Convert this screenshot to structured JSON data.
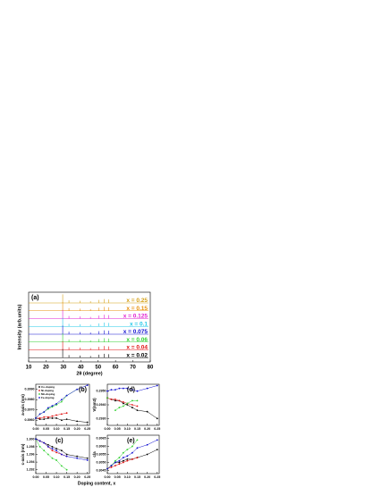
{
  "chart_data": [
    {
      "type": "waterfall",
      "label": "(a)",
      "xlabel": "2θ (degree)",
      "ylabel": "Intensity (arb.units)",
      "xlim": [
        10,
        80
      ],
      "xticks": [
        10,
        20,
        30,
        40,
        50,
        60,
        70,
        80
      ],
      "peak_x": [
        29.6,
        33.2,
        39.5,
        45.6,
        50.3,
        53.6,
        56.0
      ],
      "peak_height": [
        1.0,
        0.3,
        0.25,
        0.2,
        0.35,
        0.45,
        0.4
      ],
      "series": [
        {
          "name": "x = 0.25",
          "color": "#d4a017"
        },
        {
          "name": "x = 0.15",
          "color": "#e8900c"
        },
        {
          "name": "x = 0.125",
          "color": "#e020d0"
        },
        {
          "name": "x = 0.1",
          "color": "#20c8e8"
        },
        {
          "name": "x = 0.075",
          "color": "#1010d0"
        },
        {
          "name": "x = 0.06",
          "color": "#30d030"
        },
        {
          "name": "x = 0.04",
          "color": "#e01010"
        },
        {
          "name": "x = 0.02",
          "color": "#000000"
        }
      ]
    },
    {
      "type": "line",
      "label": "(b)",
      "ylabel": "a-axis (nm)",
      "x": [
        0,
        0.02,
        0.04,
        0.06,
        0.08,
        0.1,
        0.125,
        0.15,
        0.2,
        0.25
      ],
      "xlim": [
        0,
        0.26
      ],
      "xticks": [
        {
          "value": 0,
          "label": "0.00"
        },
        0.05,
        {
          "value": 0.1,
          "label": "0.10"
        },
        0.15,
        {
          "value": 0.2,
          "label": "0.20"
        },
        0.25
      ],
      "ylim": [
        0.3955,
        0.3995
      ],
      "yticks": [
        {
          "value": 0.396,
          "label": "0.3960"
        },
        {
          "value": 0.397,
          "label": "0.3970"
        },
        {
          "value": 0.398,
          "label": "0.3980"
        },
        {
          "value": 0.399,
          "label": "0.3990"
        }
      ],
      "series": [
        {
          "name": "Co-doping",
          "color": "#000000",
          "values": [
            0.3962,
            0.3961,
            0.3961,
            0.3962,
            0.3962,
            0.3962,
            0.396,
            0.3961,
            0.3959,
            0.3958
          ]
        },
        {
          "name": "Ni-doping",
          "color": "#e01010",
          "values": [
            0.3962,
            0.3962,
            0.3963,
            0.3963,
            0.3964,
            0.3965,
            0.3966,
            0.3967,
            null,
            null
          ]
        },
        {
          "name": "Mn-doping",
          "color": "#30d030",
          "values": [
            0.3962,
            0.3966,
            0.3968,
            0.3971,
            0.3973,
            0.3975,
            0.3978,
            0.3984,
            0.399,
            null
          ]
        },
        {
          "name": "Fe-doping",
          "color": "#1010d0",
          "values": [
            0.3962,
            0.3966,
            0.3968,
            0.3972,
            0.3974,
            0.3976,
            0.398,
            0.3984,
            0.399,
            0.3994
          ]
        }
      ]
    },
    {
      "type": "line",
      "label": "(d)",
      "ylabel": "V(nm3)",
      "x": [
        0,
        0.02,
        0.04,
        0.06,
        0.08,
        0.1,
        0.125,
        0.15,
        0.2,
        0.25
      ],
      "xlim": [
        0,
        0.26
      ],
      "xticks": [
        {
          "value": 0,
          "label": "0.00"
        },
        0.05,
        {
          "value": 0.1,
          "label": "0.10"
        },
        0.15,
        {
          "value": 0.2,
          "label": "0.20"
        },
        0.25
      ],
      "ylim": [
        0.2925,
        0.2955
      ],
      "yticks": [
        {
          "value": 0.293,
          "label": "0.2930"
        },
        {
          "value": 0.294,
          "label": "0.2940"
        },
        {
          "value": 0.295,
          "label": "0.2950"
        }
      ],
      "series": [
        {
          "name": "Co-doping",
          "color": "#000000",
          "values": [
            0.2945,
            0.2944,
            0.2943,
            0.2943,
            0.2941,
            0.294,
            0.2938,
            0.2936,
            0.2935,
            0.293
          ]
        },
        {
          "name": "Ni-doping",
          "color": "#e01010",
          "values": [
            0.2945,
            0.2944,
            0.2944,
            0.2943,
            0.2942,
            0.2941,
            0.294,
            0.2939,
            null,
            null
          ]
        },
        {
          "name": "Mn-doping",
          "color": "#30d030",
          "values": [
            0.2945,
            null,
            0.2936,
            0.2938,
            0.2939,
            0.2941,
            0.2943,
            0.2943,
            null,
            null
          ]
        },
        {
          "name": "Fe-doping",
          "color": "#1010d0",
          "values": [
            0.295,
            0.2951,
            0.2951,
            0.2952,
            0.2952,
            0.2952,
            0.2951,
            0.295,
            0.2952,
            0.2954
          ]
        }
      ]
    },
    {
      "type": "line",
      "label": "(c)",
      "ylabel": "c-axis (nm)",
      "x": [
        0,
        0.02,
        0.04,
        0.06,
        0.08,
        0.1,
        0.125,
        0.15,
        0.2,
        0.25
      ],
      "xlim": [
        0,
        0.26
      ],
      "xticks": [
        {
          "value": 0,
          "label": "0.00"
        },
        0.05,
        {
          "value": 0.1,
          "label": "0.10"
        },
        0.15,
        {
          "value": 0.2,
          "label": "0.20"
        },
        0.25
      ],
      "ylim": [
        1.291,
        1.301
      ],
      "yticks": [
        1.292,
        1.294,
        1.296,
        1.298,
        {
          "value": 1.3,
          "label": "1.300"
        }
      ],
      "series": [
        {
          "name": "Co-doping",
          "color": "#000000",
          "values": [
            1.3,
            1.2995,
            1.299,
            1.2985,
            1.298,
            1.2975,
            1.297,
            1.296,
            1.2955,
            1.295
          ]
        },
        {
          "name": "Ni-doping",
          "color": "#e01010",
          "values": [
            1.3,
            1.2995,
            1.299,
            1.298,
            1.297,
            1.2965,
            1.296,
            1.2955,
            null,
            null
          ]
        },
        {
          "name": "Mn-doping",
          "color": "#30d030",
          "values": [
            1.3,
            1.298,
            1.297,
            1.296,
            1.295,
            1.2945,
            1.293,
            1.292,
            null,
            null
          ]
        },
        {
          "name": "Fe-doping",
          "color": "#1010d0",
          "values": [
            1.3,
            1.2995,
            1.299,
            1.298,
            1.2975,
            1.297,
            1.296,
            1.2955,
            1.295,
            1.2945
          ]
        }
      ]
    },
    {
      "type": "line",
      "label": "(e)",
      "ylabel": "c/a",
      "xlabel": "Doping content, x",
      "x": [
        0,
        0.02,
        0.04,
        0.06,
        0.08,
        0.1,
        0.125,
        0.15,
        0.2,
        0.25
      ],
      "xlim": [
        0,
        0.26
      ],
      "xticks": [
        {
          "value": 0,
          "label": "0.00"
        },
        0.05,
        {
          "value": 0.1,
          "label": "0.10"
        },
        0.15,
        {
          "value": 0.2,
          "label": "0.20"
        },
        0.25
      ],
      "ylim": [
        0.3043,
        0.3067
      ],
      "yticks": [
        0.3045,
        {
          "value": 0.305,
          "label": "0.3050"
        },
        0.3055,
        {
          "value": 0.306,
          "label": "0.3060"
        },
        0.3065
      ],
      "series": [
        {
          "name": "Co-doping",
          "color": "#000000",
          "values": [
            0.3046,
            0.3048,
            0.305,
            0.305,
            0.3051,
            0.3052,
            0.3052,
            0.3053,
            0.3055,
            0.3058
          ]
        },
        {
          "name": "Ni-doping",
          "color": "#e01010",
          "values": [
            0.3046,
            0.3047,
            0.3048,
            0.3049,
            0.305,
            0.3051,
            0.3052,
            0.3053,
            null,
            null
          ]
        },
        {
          "name": "Mn-doping",
          "color": "#30d030",
          "values": [
            0.3046,
            0.3048,
            0.3051,
            0.3053,
            0.3056,
            0.3058,
            0.306,
            0.3064,
            null,
            null
          ]
        },
        {
          "name": "Fe-doping",
          "color": "#1010d0",
          "values": [
            0.3046,
            0.3048,
            0.305,
            0.3051,
            0.3053,
            0.3054,
            0.3056,
            0.3059,
            0.3061,
            0.3064
          ]
        }
      ]
    }
  ]
}
